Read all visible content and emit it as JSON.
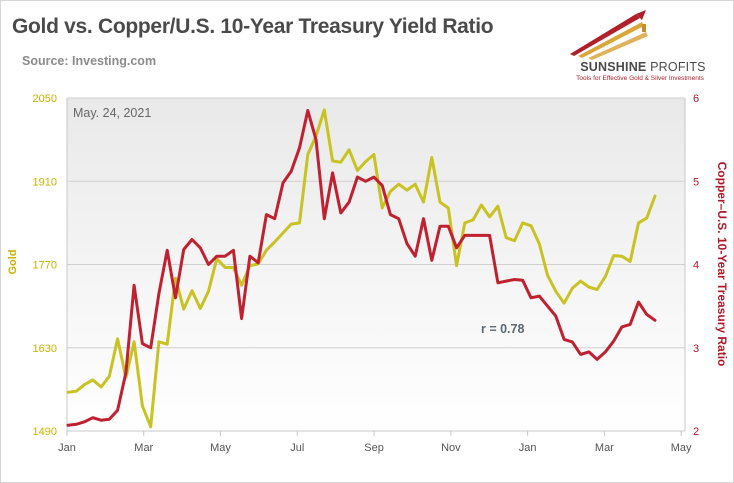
{
  "header": {
    "title": "Gold vs. Copper/U.S. 10-Year Treasury Yield Ratio",
    "source": "Source: Investing.com"
  },
  "logo": {
    "brand_main": "SUNSHINE",
    "brand_light": " PROFITS",
    "tagline": "Tools for Effective Gold & Silver Investments"
  },
  "chart_data": {
    "type": "line",
    "annotation_date": "May. 24, 2021",
    "annotation_r": "r = 0.78",
    "y_left_label": "Gold",
    "y_right_label": "Copper–U.S. 10-Year Treasury Ratio",
    "y_left_range": [
      1490,
      2050
    ],
    "y_right_range": [
      2,
      6
    ],
    "y_left_ticks": [
      "1490",
      "1630",
      "1770",
      "1910",
      "2050"
    ],
    "y_right_ticks": [
      "2",
      "3",
      "4",
      "5",
      "6"
    ],
    "x_ticks": [
      "Jan",
      "Mar",
      "May",
      "Jul",
      "Sep",
      "Nov",
      "Jan",
      "Mar",
      "May"
    ],
    "grid": true,
    "colors": {
      "gold": "#c8c223",
      "ratio": "#c02030"
    },
    "series": [
      {
        "key": "gold",
        "axis": "left",
        "values": [
          1555,
          1557,
          1568,
          1576,
          1564,
          1582,
          1645,
          1580,
          1640,
          1532,
          1497,
          1640,
          1636,
          1747,
          1695,
          1726,
          1696,
          1725,
          1780,
          1765,
          1765,
          1735,
          1768,
          1771,
          1794,
          1808,
          1823,
          1838,
          1840,
          1955,
          1986,
          2030,
          1944,
          1942,
          1963,
          1928,
          1943,
          1955,
          1865,
          1893,
          1905,
          1895,
          1905,
          1875,
          1950,
          1875,
          1865,
          1768,
          1840,
          1845,
          1870,
          1850,
          1868,
          1815,
          1810,
          1840,
          1835,
          1805,
          1752,
          1725,
          1705,
          1730,
          1742,
          1732,
          1728,
          1750,
          1785,
          1784,
          1775,
          1840,
          1848,
          1885
        ]
      },
      {
        "key": "ratio",
        "axis": "right",
        "values": [
          2.07,
          2.08,
          2.11,
          2.16,
          2.13,
          2.14,
          2.25,
          2.7,
          3.75,
          3.05,
          3.0,
          3.65,
          4.17,
          3.6,
          4.18,
          4.3,
          4.2,
          4.0,
          4.1,
          4.1,
          4.17,
          3.35,
          4.1,
          4.02,
          4.6,
          4.55,
          4.98,
          5.12,
          5.4,
          5.85,
          5.5,
          4.55,
          5.1,
          4.62,
          4.75,
          5.05,
          5.0,
          5.05,
          4.95,
          4.6,
          4.55,
          4.25,
          4.1,
          4.55,
          4.05,
          4.46,
          4.46,
          4.2,
          4.35,
          4.35,
          4.35,
          4.35,
          3.78,
          3.8,
          3.82,
          3.81,
          3.6,
          3.62,
          3.5,
          3.38,
          3.1,
          3.07,
          2.92,
          2.95,
          2.86,
          2.95,
          3.08,
          3.25,
          3.28,
          3.55,
          3.4,
          3.33
        ]
      }
    ]
  }
}
